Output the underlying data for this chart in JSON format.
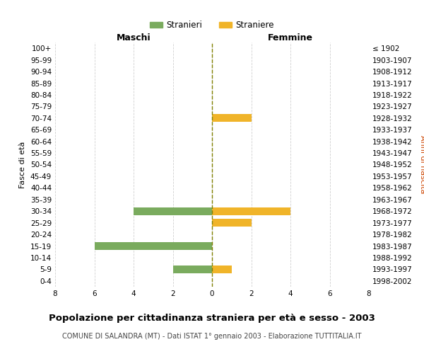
{
  "age_groups": [
    "0-4",
    "5-9",
    "10-14",
    "15-19",
    "20-24",
    "25-29",
    "30-34",
    "35-39",
    "40-44",
    "45-49",
    "50-54",
    "55-59",
    "60-64",
    "65-69",
    "70-74",
    "75-79",
    "80-84",
    "85-89",
    "90-94",
    "95-99",
    "100+"
  ],
  "birth_years": [
    "1998-2002",
    "1993-1997",
    "1988-1992",
    "1983-1987",
    "1978-1982",
    "1973-1977",
    "1968-1972",
    "1963-1967",
    "1958-1962",
    "1953-1957",
    "1948-1952",
    "1943-1947",
    "1938-1942",
    "1933-1937",
    "1928-1932",
    "1923-1927",
    "1918-1922",
    "1913-1917",
    "1908-1912",
    "1903-1907",
    "≤ 1902"
  ],
  "maschi": [
    0,
    2,
    0,
    6,
    0,
    0,
    4,
    0,
    0,
    0,
    0,
    0,
    0,
    0,
    0,
    0,
    0,
    0,
    0,
    0,
    0
  ],
  "femmine": [
    0,
    1,
    0,
    0,
    0,
    2,
    4,
    0,
    0,
    0,
    0,
    0,
    0,
    0,
    2,
    0,
    0,
    0,
    0,
    0,
    0
  ],
  "color_maschi": "#7aab5e",
  "color_femmine": "#f0b429",
  "title": "Popolazione per cittadinanza straniera per età e sesso - 2003",
  "subtitle": "COMUNE DI SALANDRA (MT) - Dati ISTAT 1° gennaio 2003 - Elaborazione TUTTITALIA.IT",
  "xlabel_left": "Maschi",
  "xlabel_right": "Femmine",
  "ylabel_left": "Fasce di età",
  "ylabel_right": "Anni di nascita",
  "legend_maschi": "Stranieri",
  "legend_femmine": "Straniere",
  "xlim": 8,
  "background_color": "#ffffff",
  "grid_color": "#d0d0d0"
}
